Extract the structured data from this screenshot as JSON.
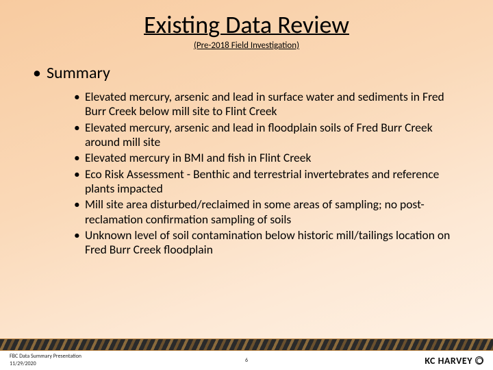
{
  "title": "Existing Data Review",
  "subtitle": "(Pre-2018 Field Investigation)",
  "summary_heading": "Summary",
  "bullets": [
    "Elevated mercury, arsenic and lead in surface water and sediments in Fred Burr Creek below mill site to Flint Creek",
    "Elevated mercury, arsenic and lead in floodplain soils of Fred Burr Creek around mill site",
    "Elevated mercury in BMI and fish in Flint Creek",
    "Eco Risk Assessment - Benthic and terrestrial invertebrates and reference plants impacted",
    "Mill site area disturbed/reclaimed in some areas of sampling; no post-reclamation confirmation sampling of soils",
    "Unknown level of soil contamination below historic mill/tailings location on Fred Burr Creek floodplain"
  ],
  "footer": {
    "doc_title": "FBC Data Summary Presentation",
    "date": "11/29/2020",
    "page": "6",
    "brand": "KC HARVEY"
  },
  "colors": {
    "bg_grad_from": "#f8cba0",
    "bg_grad_to": "#fef3e8",
    "text": "#000000",
    "band_dark": "#2a2a2a",
    "band_accent": "#8a6a3c"
  }
}
